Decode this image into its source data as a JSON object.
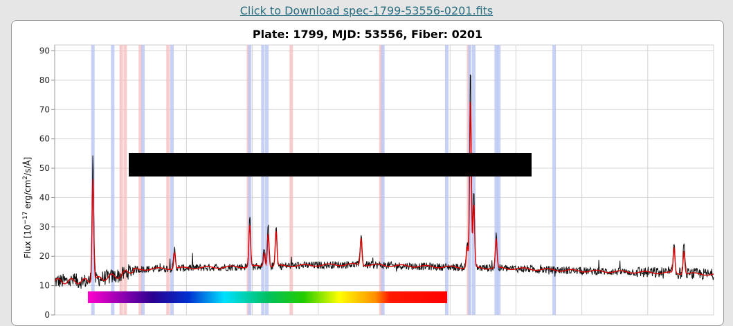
{
  "header": {
    "download_link": "Click to Download spec-1799-53556-0201.fits"
  },
  "colors": {
    "page_bg": "#e6e6e6",
    "link": "#2a6f80",
    "spectrum": "#111111",
    "model": "#dd0000",
    "emission_band": "#b8c6f2",
    "absorption_band": "#f5bcbc",
    "redaction_box": "#000000"
  },
  "chart_data": {
    "type": "line",
    "title": "Plate: 1799, MJD: 53556, Fiber: 0201",
    "ylabel_parts": [
      "Flux [10",
      "−17",
      " erg/cm",
      "2",
      "/s/Å]"
    ],
    "xlabel": "",
    "xlim": [
      0,
      100
    ],
    "ylim": [
      0,
      92
    ],
    "yticks": [
      0,
      10,
      20,
      30,
      40,
      50,
      60,
      70,
      80,
      90
    ],
    "x_grid": [
      0,
      10,
      20,
      30,
      40,
      50,
      60,
      70,
      80,
      90,
      100
    ],
    "grid": true,
    "bands_blue": [
      5.8,
      8.8,
      13.4,
      17.8,
      29.6,
      31.6,
      32.2,
      49.8,
      59.5,
      63.0,
      63.6,
      67.0,
      67.4,
      75.8
    ],
    "bands_red": [
      10.1,
      10.7,
      13.0,
      17.2,
      29.4,
      35.9,
      49.5,
      62.8
    ],
    "peaks": [
      {
        "x": 5.8,
        "y": 53.5
      },
      {
        "x": 18.2,
        "y": 22.5
      },
      {
        "x": 29.6,
        "y": 33.5
      },
      {
        "x": 31.8,
        "y": 22.0
      },
      {
        "x": 32.4,
        "y": 30.0
      },
      {
        "x": 33.6,
        "y": 30.5
      },
      {
        "x": 46.5,
        "y": 28.0
      },
      {
        "x": 62.6,
        "y": 25.0
      },
      {
        "x": 63.1,
        "y": 84.0
      },
      {
        "x": 63.6,
        "y": 41.5
      },
      {
        "x": 67.0,
        "y": 27.5
      },
      {
        "x": 94.0,
        "y": 24.5
      },
      {
        "x": 95.5,
        "y": 23.5
      }
    ],
    "continuum": [
      {
        "x": 0,
        "y": 11.5
      },
      {
        "x": 5,
        "y": 11.5
      },
      {
        "x": 8,
        "y": 12.8
      },
      {
        "x": 10,
        "y": 13.5
      },
      {
        "x": 12,
        "y": 15.5
      },
      {
        "x": 20,
        "y": 16.0
      },
      {
        "x": 30,
        "y": 16.5
      },
      {
        "x": 45,
        "y": 17.2
      },
      {
        "x": 55,
        "y": 16.6
      },
      {
        "x": 62,
        "y": 16.2
      },
      {
        "x": 70,
        "y": 15.8
      },
      {
        "x": 80,
        "y": 15.0
      },
      {
        "x": 90,
        "y": 14.5
      },
      {
        "x": 100,
        "y": 13.8
      }
    ]
  }
}
